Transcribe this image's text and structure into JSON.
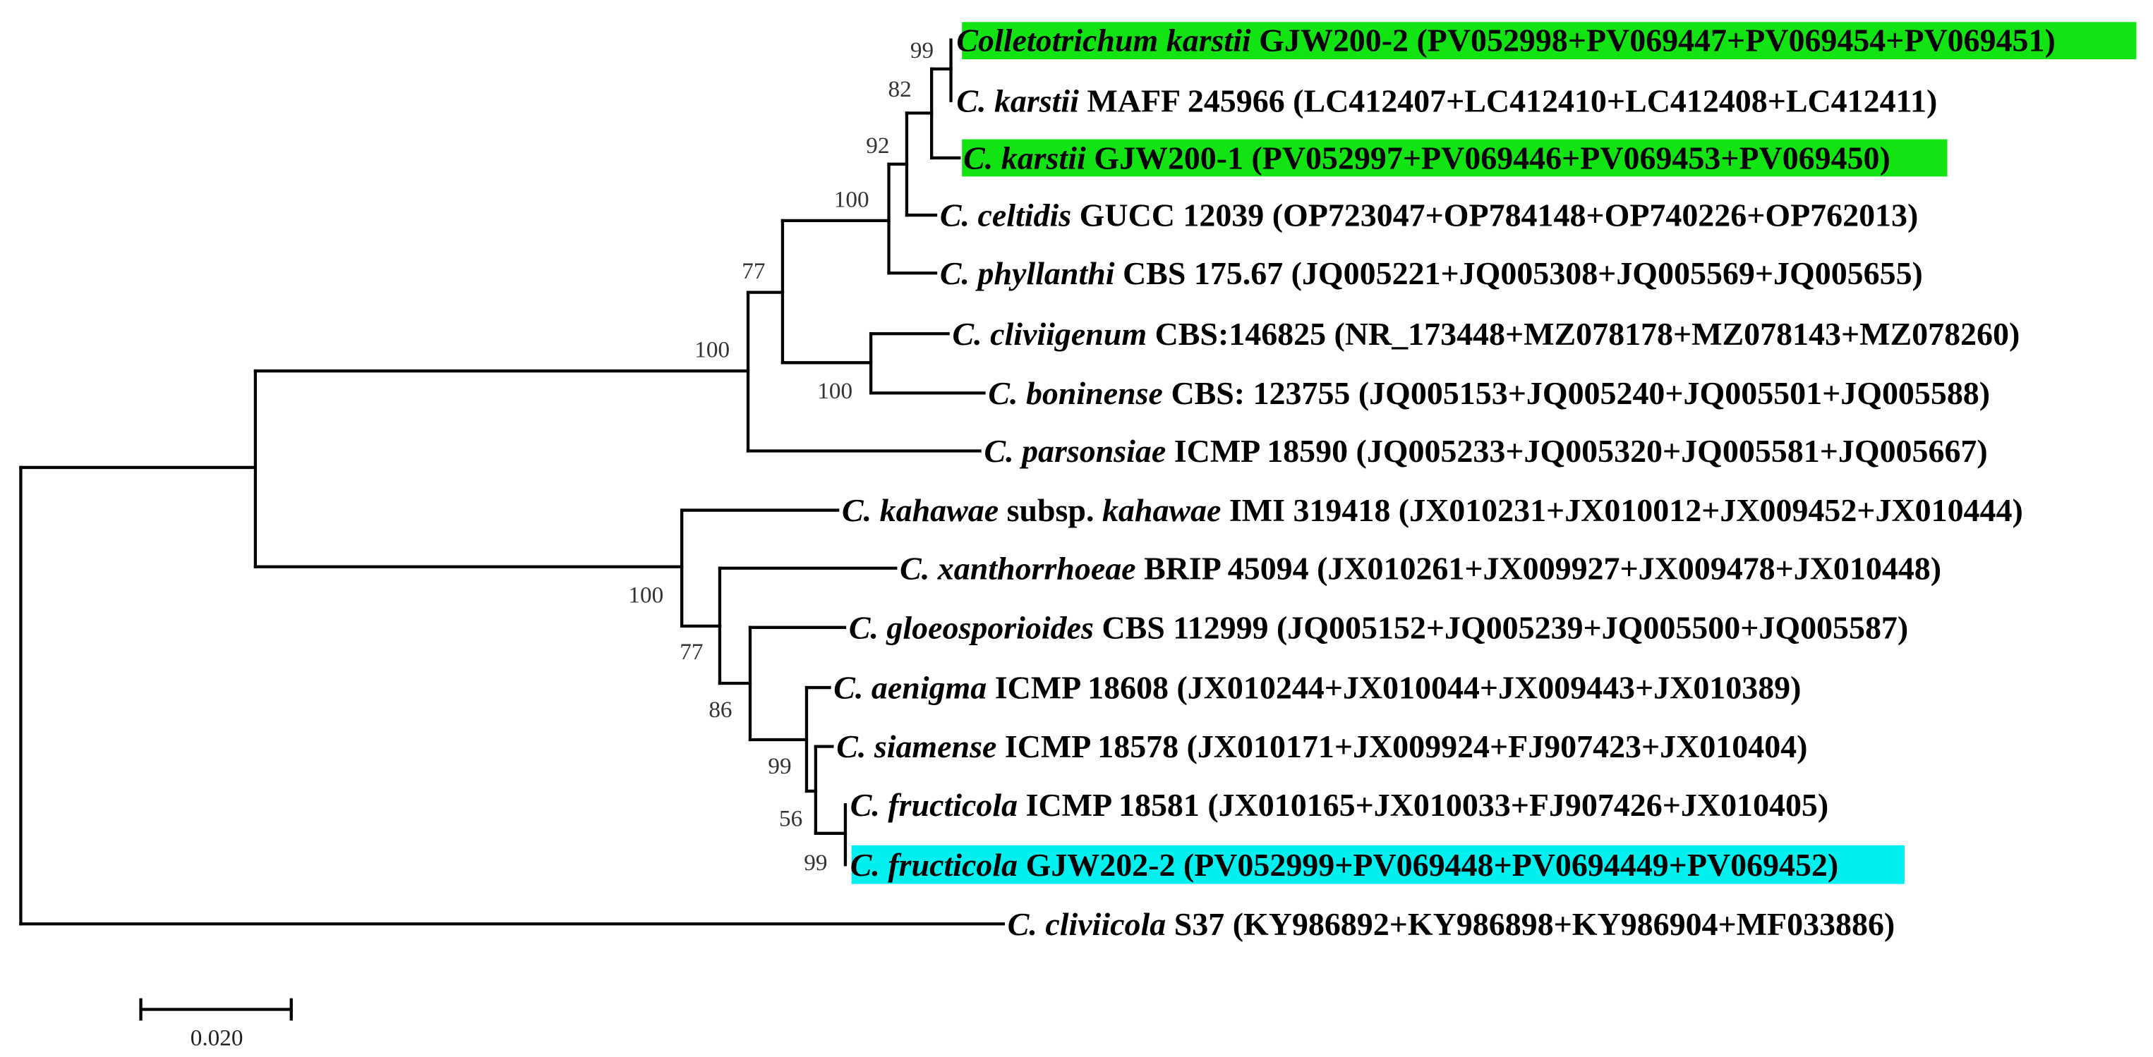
{
  "colors": {
    "highlight_karstii": "#12e312",
    "highlight_fructicola": "#00f0f0",
    "branch": "#000000"
  },
  "taxa": [
    {
      "id": "t1",
      "highlight": "highlight_karstii",
      "parts": [
        {
          "t": "Colletotrichum karstii",
          "i": true
        },
        {
          "t": " GJW200-2 (PV052998+PV069447+PV069454+PV069451)",
          "i": false
        }
      ]
    },
    {
      "id": "t2",
      "parts": [
        {
          "t": "C. karstii",
          "i": true
        },
        {
          "t": " MAFF 245966 (LC412407+LC412410+LC412408+LC412411)",
          "i": false
        }
      ]
    },
    {
      "id": "t3",
      "highlight": "highlight_karstii",
      "parts": [
        {
          "t": "C. karstii",
          "i": true
        },
        {
          "t": " GJW200-1 (PV052997+PV069446+PV069453+PV069450)",
          "i": false
        }
      ]
    },
    {
      "id": "t4",
      "parts": [
        {
          "t": "C. celtidis",
          "i": true
        },
        {
          "t": " GUCC 12039 (OP723047+OP784148+OP740226+OP762013)",
          "i": false
        }
      ]
    },
    {
      "id": "t5",
      "parts": [
        {
          "t": "C. phyllanthi",
          "i": true
        },
        {
          "t": " CBS 175.67 (JQ005221+JQ005308+JQ005569+JQ005655)",
          "i": false
        }
      ]
    },
    {
      "id": "t6",
      "parts": [
        {
          "t": "C. cliviigenum",
          "i": true
        },
        {
          "t": " CBS:146825 (NR_173448+MZ078178+MZ078143+MZ078260)",
          "i": false
        }
      ]
    },
    {
      "id": "t7",
      "parts": [
        {
          "t": "C. boninense",
          "i": true
        },
        {
          "t": " CBS: 123755 (JQ005153+JQ005240+JQ005501+JQ005588)",
          "i": false
        }
      ]
    },
    {
      "id": "t8",
      "parts": [
        {
          "t": "C. parsonsiae",
          "i": true
        },
        {
          "t": " ICMP 18590 (JQ005233+JQ005320+JQ005581+JQ005667)",
          "i": false
        }
      ]
    },
    {
      "id": "t9",
      "parts": [
        {
          "t": "C. kahawae",
          "i": true
        },
        {
          "t": " subsp. ",
          "i": false
        },
        {
          "t": "kahawae",
          "i": true
        },
        {
          "t": " IMI 319418 (JX010231+JX010012+JX009452+JX010444)",
          "i": false
        }
      ]
    },
    {
      "id": "t10",
      "parts": [
        {
          "t": "C. xanthorrhoeae",
          "i": true
        },
        {
          "t": " BRIP 45094 (JX010261+JX009927+JX009478+JX010448)",
          "i": false
        }
      ]
    },
    {
      "id": "t11",
      "parts": [
        {
          "t": "C. gloeosporioides",
          "i": true
        },
        {
          "t": " CBS 112999 (JQ005152+JQ005239+JQ005500+JQ005587)",
          "i": false
        }
      ]
    },
    {
      "id": "t12",
      "parts": [
        {
          "t": "C. aenigma",
          "i": true
        },
        {
          "t": " ICMP 18608 (JX010244+JX010044+JX009443+JX010389)",
          "i": false
        }
      ]
    },
    {
      "id": "t13",
      "parts": [
        {
          "t": "C. siamense",
          "i": true
        },
        {
          "t": " ICMP 18578 (JX010171+JX009924+FJ907423+JX010404)",
          "i": false
        }
      ]
    },
    {
      "id": "t14",
      "parts": [
        {
          "t": "C. fructicola",
          "i": true
        },
        {
          "t": " ICMP 18581 (JX010165+JX010033+FJ907426+JX010405)",
          "i": false
        }
      ]
    },
    {
      "id": "t15",
      "highlight": "highlight_fructicola",
      "parts": [
        {
          "t": "C. fructicola",
          "i": true
        },
        {
          "t": " GJW202-2 (PV052999+PV069448+PV0694449+PV069452)",
          "i": false
        }
      ]
    },
    {
      "id": "t16",
      "parts": [
        {
          "t": "C. cliviicola",
          "i": true
        },
        {
          "t": " S37 (KY986892+KY986898+KY986904+MF033886)",
          "i": false
        }
      ]
    }
  ],
  "bootstrap": [
    {
      "node": "n_karstii_pair",
      "value": "99"
    },
    {
      "node": "n_karstii",
      "value": "82"
    },
    {
      "node": "n_celtidis",
      "value": "92"
    },
    {
      "node": "n_phyllanthi",
      "value": "100"
    },
    {
      "node": "n_upper77",
      "value": "77"
    },
    {
      "node": "n_upper",
      "value": "100"
    },
    {
      "node": "n_boninense",
      "value": "100"
    },
    {
      "node": "n_lower",
      "value": "100"
    },
    {
      "node": "n_xanth",
      "value": "77"
    },
    {
      "node": "n_gloeo",
      "value": "86"
    },
    {
      "node": "n_aenigma",
      "value": "99"
    },
    {
      "node": "n_siamense",
      "value": "56"
    },
    {
      "node": "n_fructicola",
      "value": "99"
    }
  ],
  "scale_bar": {
    "label": "0.020",
    "value": 0.02
  }
}
